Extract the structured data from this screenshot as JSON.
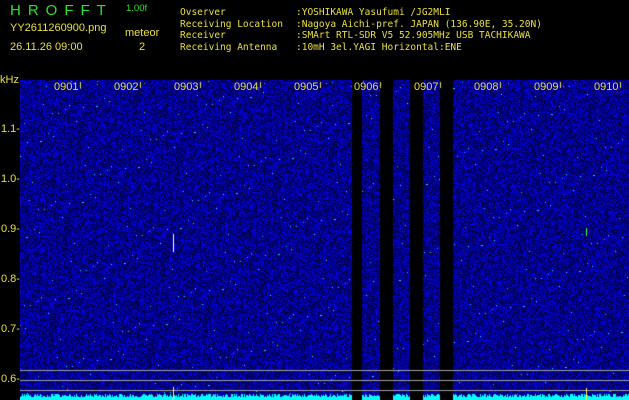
{
  "header": {
    "app_title": "HROFFT",
    "version": "1.00f",
    "filename": "YY2611260900.png",
    "datetime": "26.11.26 09:00",
    "meteor_label": "meteor",
    "meteor_count": "2",
    "info": [
      {
        "key": "Ovserver",
        "value": ":YOSHIKAWA Yasufumi /JG2MLI"
      },
      {
        "key": "Receiving Location",
        "value": ":Nagoya Aichi-pref. JAPAN (136.90E, 35.20N)"
      },
      {
        "key": "Receiver",
        "value": ":SMArt RTL-SDR V5 52.905MHz USB TACHIKAWA"
      },
      {
        "key": "Receiving Antenna",
        "value": ":10mH 3el.YAGI Horizontal:ENE"
      }
    ]
  },
  "spectrogram": {
    "y_unit": "kHz",
    "y_ticks": [
      "1.1",
      "1.0",
      "0.9",
      "0.8",
      "0.7",
      "0.6"
    ],
    "y_range_khz": [
      0.56,
      1.2
    ],
    "x_ticks": [
      "0901",
      "0902",
      "0903",
      "0904",
      "0905",
      "0906",
      "0907",
      "0908",
      "0909",
      "0910"
    ],
    "colors": {
      "noise": "#1010d0",
      "signal": "#00ffff",
      "text": "#e8e040",
      "title": "#30e030",
      "guide": "#a0a0a0"
    }
  }
}
